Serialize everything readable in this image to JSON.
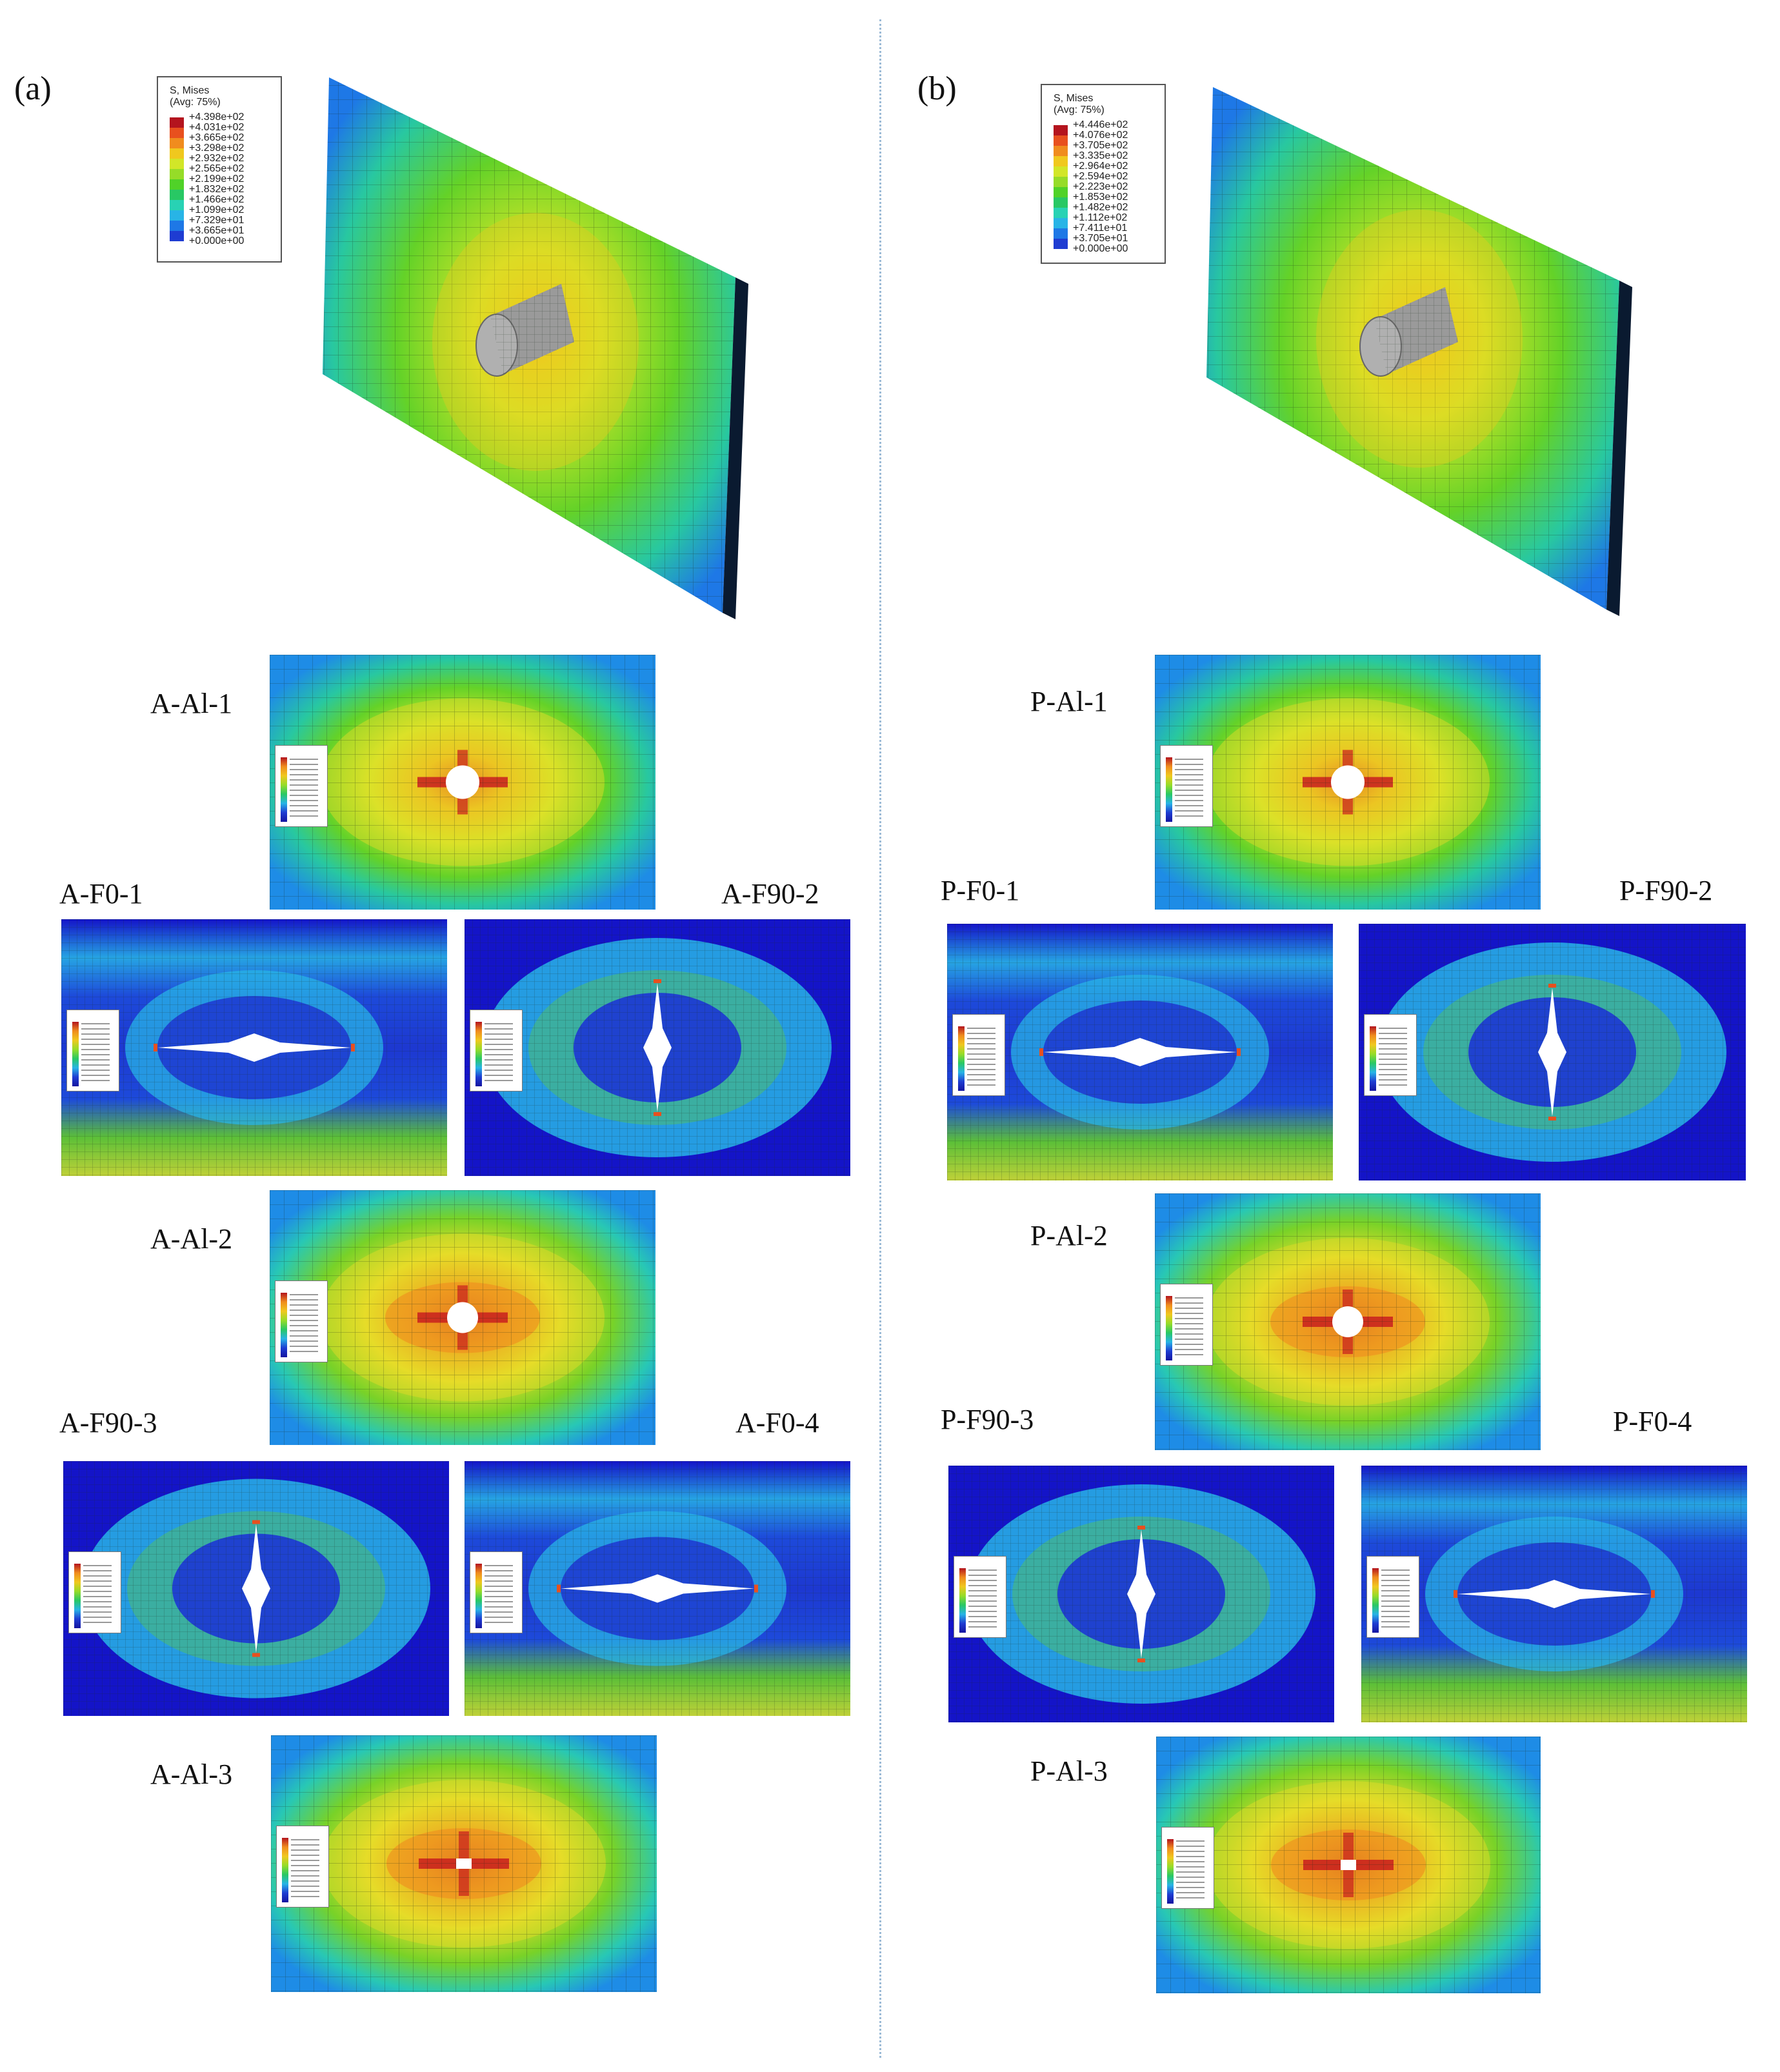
{
  "panels": {
    "a": {
      "label": "(a)"
    },
    "b": {
      "label": "(b)"
    }
  },
  "legend_a": {
    "title": "S, Mises",
    "subtitle": "(Avg: 75%)",
    "values": [
      "+4.398e+02",
      "+4.031e+02",
      "+3.665e+02",
      "+3.298e+02",
      "+2.932e+02",
      "+2.565e+02",
      "+2.199e+02",
      "+1.832e+02",
      "+1.466e+02",
      "+1.099e+02",
      "+7.329e+01",
      "+3.665e+01",
      "+0.000e+00"
    ]
  },
  "legend_b": {
    "title": "S, Mises",
    "subtitle": "(Avg: 75%)",
    "values": [
      "+4.446e+02",
      "+4.076e+02",
      "+3.705e+02",
      "+3.335e+02",
      "+2.964e+02",
      "+2.594e+02",
      "+2.223e+02",
      "+1.853e+02",
      "+1.482e+02",
      "+1.112e+02",
      "+7.411e+01",
      "+3.705e+01",
      "+0.000e+00"
    ]
  },
  "legend_colors": [
    "#b4141e",
    "#e8501e",
    "#f08c1e",
    "#f0c81e",
    "#d2e628",
    "#96dc28",
    "#50d228",
    "#28c864",
    "#28d2b4",
    "#28b4e6",
    "#1e78e6",
    "#1e3cd2",
    "#1414a0"
  ],
  "sublabels": {
    "A_Al_1": "A-Al-1",
    "A_F0_1": "A-F0-1",
    "A_F90_2": "A-F90-2",
    "A_Al_2": "A-Al-2",
    "A_F90_3": "A-F90-3",
    "A_F0_4": "A-F0-4",
    "A_Al_3": "A-Al-3",
    "P_Al_1": "P-Al-1",
    "P_F0_1": "P-F0-1",
    "P_F90_2": "P-F90-2",
    "P_Al_2": "P-Al-2",
    "P_F90_3": "P-F90-3",
    "P_F0_4": "P-F0-4",
    "P_Al_3": "P-Al-3"
  }
}
